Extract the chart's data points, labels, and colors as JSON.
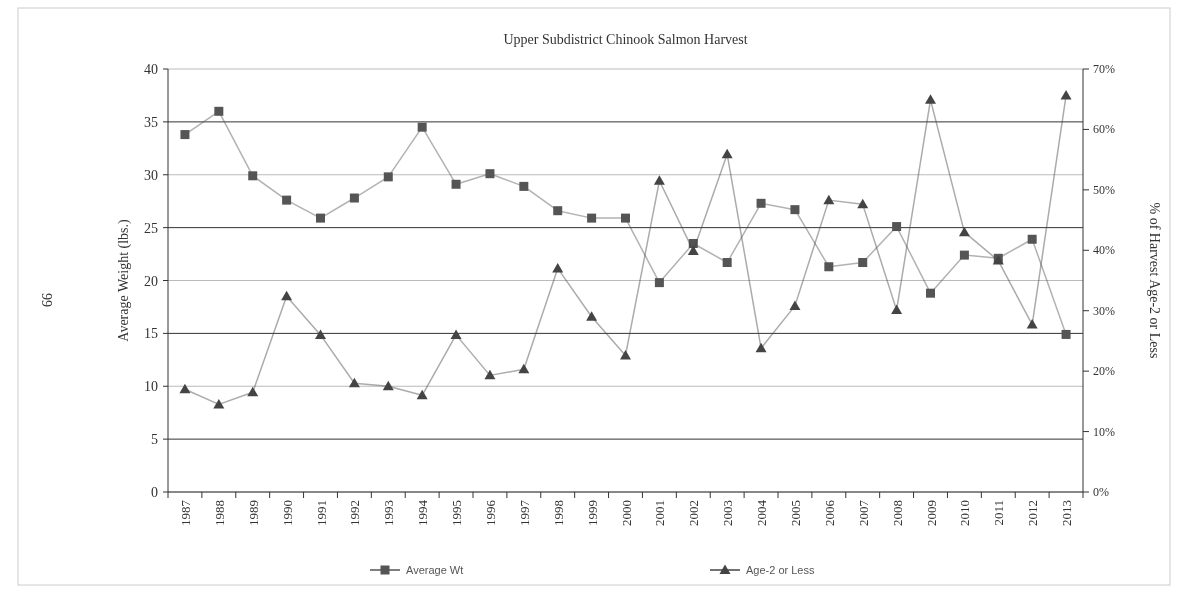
{
  "chart_data": {
    "type": "line",
    "title": "Upper Subdistrict Chinook  Salmon Harvest",
    "ylabel": "Average Weight (lbs.)",
    "y2label": "% of Harvest Age-2  or Less",
    "categories": [
      "1987",
      "1988",
      "1989",
      "1990",
      "1991",
      "1992",
      "1993",
      "1994",
      "1995",
      "1996",
      "1997",
      "1998",
      "1999",
      "2000",
      "2001",
      "2002",
      "2003",
      "2004",
      "2005",
      "2006",
      "2007",
      "2008",
      "2009",
      "2010",
      "2011",
      "2012",
      "2013"
    ],
    "series": [
      {
        "name": "Average Wt",
        "color": "#555555",
        "marker": "square",
        "values": [
          33.8,
          36,
          29.9,
          27.6,
          25.9,
          27.8,
          29.8,
          34.5,
          29.1,
          30.1,
          28.9,
          26.6,
          25.9,
          25.9,
          19.8,
          23.5,
          21.7,
          27.3,
          26.7,
          21.3,
          21.7,
          25.1,
          18.8,
          22.4,
          22.1,
          23.9,
          14.9
        ]
      },
      {
        "name": "Age-2 or Less",
        "color": "#444444",
        "marker": "triangle",
        "axis": "y2",
        "values": [
          17,
          14.5,
          16.5,
          32.4,
          26,
          18,
          17.5,
          16,
          26,
          19.3,
          20.3,
          37,
          29,
          22.6,
          51.5,
          39.9,
          55.9,
          23.8,
          30.8,
          48.3,
          47.6,
          30.1,
          64.9,
          43,
          38.3,
          27.7,
          65.6
        ]
      }
    ],
    "ylim": [
      0,
      40
    ],
    "yticks": [
      0,
      5,
      10,
      15,
      20,
      25,
      30,
      35,
      40
    ],
    "y2lim": [
      0,
      70
    ],
    "y2ticks": [
      {
        "value": 0,
        "label": "0%"
      },
      {
        "value": 10,
        "label": "10%"
      },
      {
        "value": 20,
        "label": "20%"
      },
      {
        "value": 30,
        "label": "30%"
      },
      {
        "value": 40,
        "label": "40%"
      },
      {
        "value": 50,
        "label": "50%"
      },
      {
        "value": 60,
        "label": "60%"
      },
      {
        "value": 70,
        "label": "70%"
      }
    ],
    "grid": "y",
    "legend": "bottom",
    "annotations": [
      "99"
    ]
  }
}
